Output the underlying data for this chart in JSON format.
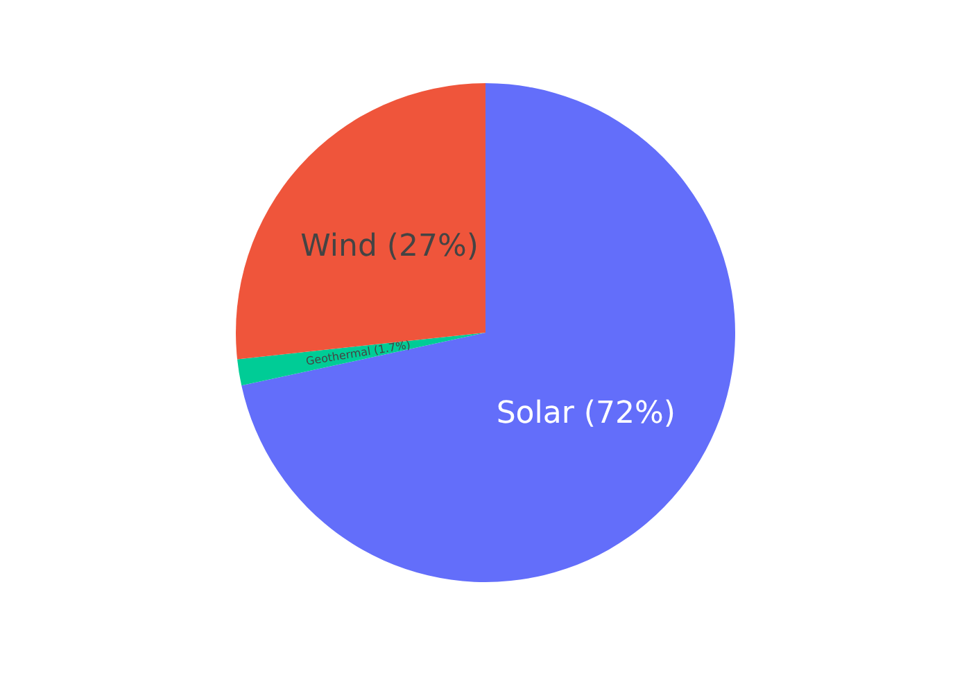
{
  "chart_data": {
    "type": "pie",
    "categories": [
      "Solar",
      "Geothermal",
      "Wind"
    ],
    "values": [
      71.6,
      1.7,
      26.7
    ],
    "colors": [
      "#636efa",
      "#00cc96",
      "#ef553b"
    ],
    "value_labels": [
      "(72%)",
      "(1.7%)",
      "(27%)"
    ],
    "legend": false
  }
}
